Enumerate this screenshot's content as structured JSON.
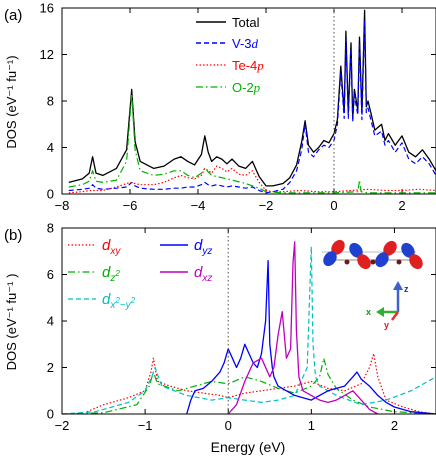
{
  "chart_data": [
    {
      "panel_label": "(a)",
      "type": "line",
      "ylabel": "DOS (eV⁻¹ fu⁻¹)",
      "xlim": [
        -8,
        3
      ],
      "ylim": [
        0,
        16
      ],
      "xticks": [
        -8,
        -6,
        -4,
        -2,
        0,
        2
      ],
      "yticks": [
        0,
        4,
        8,
        12,
        16
      ],
      "fermi_level": 0,
      "legend": "top-center",
      "series": [
        {
          "name": "Total",
          "color": "#000000",
          "style": "solid",
          "x": [
            -7.8,
            -7.4,
            -7.2,
            -7.1,
            -7.0,
            -6.8,
            -6.4,
            -6.1,
            -5.95,
            -5.85,
            -5.7,
            -5.3,
            -5.0,
            -4.7,
            -4.5,
            -4.3,
            -4.1,
            -3.9,
            -3.8,
            -3.7,
            -3.6,
            -3.45,
            -3.3,
            -3.15,
            -3.0,
            -2.8,
            -2.6,
            -2.4,
            -2.2,
            -2.0,
            -1.8,
            -1.5,
            -1.3,
            -1.1,
            -0.95,
            -0.85,
            -0.75,
            -0.6,
            -0.45,
            -0.3,
            -0.15,
            0.0,
            0.1,
            0.2,
            0.3,
            0.35,
            0.42,
            0.5,
            0.55,
            0.6,
            0.7,
            0.75,
            0.82,
            0.9,
            0.95,
            1.0,
            1.1,
            1.2,
            1.4,
            1.5,
            1.6,
            1.8,
            2.0,
            2.2,
            2.4,
            2.6,
            2.8,
            3.0
          ],
          "values": [
            1.0,
            1.3,
            1.8,
            3.2,
            1.8,
            1.6,
            2.2,
            3.8,
            9.0,
            4.5,
            2.8,
            2.2,
            2.4,
            3.0,
            3.2,
            2.8,
            2.5,
            3.4,
            5.0,
            3.6,
            2.8,
            3.2,
            3.0,
            2.6,
            3.0,
            2.4,
            2.2,
            2.8,
            1.5,
            0.7,
            0.7,
            0.9,
            1.4,
            2.5,
            4.5,
            6.3,
            4.2,
            3.6,
            4.0,
            4.6,
            4.4,
            5.2,
            6.4,
            11.0,
            7.0,
            14.0,
            7.0,
            13.0,
            6.5,
            9.0,
            7.2,
            13.5,
            7.0,
            15.8,
            7.5,
            8.0,
            6.8,
            5.5,
            6.0,
            4.6,
            5.2,
            4.2,
            5.0,
            3.6,
            3.2,
            3.8,
            3.0,
            2.0
          ]
        },
        {
          "name": "V-3d",
          "color": "#0000ff",
          "style": "dashed",
          "x": [
            -7.8,
            -7.4,
            -7.2,
            -7.1,
            -7.0,
            -6.8,
            -6.4,
            -6.1,
            -5.95,
            -5.85,
            -5.7,
            -5.3,
            -5.0,
            -4.7,
            -4.5,
            -4.3,
            -4.1,
            -3.9,
            -3.8,
            -3.7,
            -3.6,
            -3.45,
            -3.3,
            -3.15,
            -3.0,
            -2.8,
            -2.6,
            -2.4,
            -2.2,
            -2.0,
            -1.8,
            -1.5,
            -1.3,
            -1.1,
            -0.95,
            -0.85,
            -0.75,
            -0.6,
            -0.45,
            -0.3,
            -0.15,
            0.0,
            0.1,
            0.2,
            0.3,
            0.35,
            0.42,
            0.5,
            0.55,
            0.6,
            0.7,
            0.75,
            0.82,
            0.9,
            0.95,
            1.0,
            1.1,
            1.2,
            1.4,
            1.5,
            1.6,
            1.8,
            2.0,
            2.2,
            2.4,
            2.6,
            2.8,
            3.0
          ],
          "values": [
            0.3,
            0.4,
            0.5,
            0.8,
            0.5,
            0.4,
            0.5,
            0.6,
            1.0,
            0.7,
            0.5,
            0.4,
            0.4,
            0.5,
            0.5,
            0.6,
            0.6,
            0.8,
            1.0,
            0.8,
            0.7,
            0.8,
            0.7,
            0.6,
            0.7,
            0.6,
            0.5,
            0.6,
            0.3,
            0.1,
            0.2,
            0.4,
            1.0,
            2.0,
            3.8,
            6.0,
            3.6,
            3.2,
            3.8,
            4.2,
            4.0,
            4.6,
            6.0,
            10.4,
            6.5,
            13.3,
            6.5,
            12.5,
            6.2,
            8.5,
            6.8,
            13.0,
            6.4,
            15.0,
            7.0,
            7.4,
            6.2,
            5.0,
            5.4,
            4.2,
            4.6,
            3.6,
            4.4,
            3.0,
            2.6,
            3.2,
            2.6,
            1.6
          ]
        },
        {
          "name": "Te-4p",
          "color": "#ff0000",
          "style": "dotted",
          "x": [
            -7.8,
            -7.4,
            -7.2,
            -7.0,
            -6.8,
            -6.4,
            -6.0,
            -5.7,
            -5.3,
            -5.0,
            -4.7,
            -4.5,
            -4.3,
            -4.1,
            -3.9,
            -3.8,
            -3.6,
            -3.45,
            -3.3,
            -3.15,
            -3.0,
            -2.8,
            -2.6,
            -2.4,
            -2.2,
            -2.0,
            -1.8,
            -1.5,
            -1.0,
            -0.5,
            0.0,
            0.5,
            1.0,
            1.5,
            2.0,
            2.5,
            3.0
          ],
          "values": [
            0.1,
            0.2,
            0.3,
            0.3,
            0.3,
            0.6,
            1.0,
            0.8,
            0.8,
            1.0,
            1.4,
            1.6,
            1.4,
            1.3,
            1.6,
            2.2,
            1.8,
            2.4,
            2.2,
            1.9,
            2.2,
            1.7,
            1.6,
            2.0,
            1.0,
            0.3,
            0.2,
            0.2,
            0.3,
            0.2,
            0.2,
            0.3,
            0.4,
            0.3,
            0.3,
            0.4,
            0.3
          ]
        },
        {
          "name": "O-2p",
          "color": "#00b000",
          "style": "dashdot",
          "x": [
            -7.8,
            -7.4,
            -7.2,
            -7.1,
            -7.0,
            -6.8,
            -6.4,
            -6.1,
            -5.95,
            -5.85,
            -5.7,
            -5.3,
            -5.0,
            -4.7,
            -4.5,
            -4.3,
            -4.1,
            -3.9,
            -3.8,
            -3.6,
            -3.3,
            -3.0,
            -2.6,
            -2.2,
            -2.0,
            -1.5,
            -1.0,
            0.0,
            0.7,
            0.75,
            0.8,
            1.0,
            1.5,
            2.0,
            3.0
          ],
          "values": [
            0.6,
            0.8,
            1.1,
            2.0,
            1.1,
            1.0,
            1.2,
            2.8,
            8.6,
            3.8,
            2.0,
            1.6,
            1.7,
            2.0,
            2.0,
            1.6,
            1.4,
            1.8,
            2.2,
            1.6,
            1.4,
            1.2,
            0.9,
            0.5,
            0.2,
            0.1,
            0.1,
            0.1,
            0.2,
            1.2,
            0.2,
            0.1,
            0.1,
            0.1,
            0.1
          ]
        }
      ]
    },
    {
      "panel_label": "(b)",
      "type": "line",
      "xlabel": "Energy (eV)",
      "ylabel": "DOS (eV⁻¹ fu⁻¹ )",
      "xlim": [
        -2,
        2.5
      ],
      "ylim": [
        0,
        8
      ],
      "xticks": [
        -2,
        -1,
        0,
        1,
        2
      ],
      "yticks": [
        0,
        2,
        4,
        6,
        8
      ],
      "fermi_level": 0,
      "legend": "top-left",
      "inset_axis_labels": [
        "z",
        "x",
        "y"
      ],
      "series": [
        {
          "name": "d_xy",
          "color": "#ff0000",
          "style": "dotted",
          "x": [
            -1.7,
            -1.5,
            -1.2,
            -1.0,
            -0.93,
            -0.9,
            -0.85,
            -0.7,
            -0.5,
            -0.3,
            -0.1,
            0.0,
            0.2,
            0.4,
            0.6,
            0.8,
            1.0,
            1.2,
            1.4,
            1.6,
            1.7,
            1.75,
            1.8,
            1.9,
            2.1,
            2.3,
            2.5
          ],
          "values": [
            0.1,
            0.4,
            0.7,
            1.0,
            1.8,
            2.4,
            1.4,
            1.2,
            1.0,
            0.9,
            0.8,
            0.7,
            0.9,
            1.0,
            1.1,
            1.2,
            1.4,
            1.1,
            1.0,
            1.3,
            2.0,
            2.6,
            1.6,
            0.6,
            0.3,
            0.1,
            0.0
          ]
        },
        {
          "name": "d_z2",
          "color": "#00b000",
          "style": "dashdot",
          "x": [
            -2.0,
            -1.5,
            -1.1,
            -0.95,
            -0.9,
            -0.85,
            -0.6,
            -0.4,
            -0.2,
            0.0,
            0.2,
            0.4,
            0.6,
            0.8,
            1.0,
            1.1,
            1.15,
            1.2,
            1.3,
            1.5,
            1.7,
            2.0,
            2.5
          ],
          "values": [
            0.0,
            0.05,
            0.4,
            1.2,
            1.8,
            1.3,
            1.0,
            1.2,
            1.4,
            1.3,
            1.6,
            1.4,
            1.1,
            0.9,
            1.2,
            1.6,
            2.4,
            1.7,
            1.1,
            0.6,
            0.3,
            0.1,
            0.0
          ]
        },
        {
          "name": "d_x2-y2",
          "color": "#00c0c0",
          "style": "dashed",
          "x": [
            -2.0,
            -1.6,
            -1.2,
            -1.0,
            -0.92,
            -0.88,
            -0.8,
            -0.5,
            -0.2,
            0.0,
            0.2,
            0.4,
            0.6,
            0.8,
            0.95,
            1.0,
            1.02,
            1.05,
            1.1,
            1.3,
            1.6,
            1.9,
            2.2,
            2.5
          ],
          "values": [
            0.0,
            0.1,
            0.5,
            1.0,
            1.6,
            2.0,
            1.2,
            0.8,
            0.6,
            0.7,
            0.6,
            0.5,
            0.6,
            0.8,
            2.0,
            7.2,
            3.0,
            1.6,
            1.2,
            0.8,
            0.4,
            0.6,
            1.0,
            1.6
          ]
        },
        {
          "name": "d_yz",
          "color": "#0000ff",
          "style": "solid",
          "x": [
            -0.5,
            -0.45,
            -0.4,
            -0.3,
            -0.2,
            -0.1,
            -0.05,
            0.0,
            0.05,
            0.1,
            0.15,
            0.2,
            0.25,
            0.3,
            0.35,
            0.4,
            0.45,
            0.48,
            0.5,
            0.53,
            0.55,
            0.6,
            0.7,
            0.8,
            0.9,
            1.0,
            1.1,
            1.2,
            1.3,
            1.4,
            1.5,
            1.55,
            1.6,
            1.7,
            1.8,
            1.9,
            2.0,
            2.2,
            2.5
          ],
          "values": [
            0.0,
            0.6,
            1.0,
            1.1,
            1.4,
            1.8,
            2.2,
            2.8,
            2.4,
            2.0,
            2.4,
            3.0,
            2.6,
            2.2,
            2.0,
            2.6,
            4.0,
            6.6,
            3.0,
            2.0,
            1.6,
            1.2,
            1.0,
            0.8,
            0.7,
            0.6,
            0.8,
            1.0,
            1.1,
            1.2,
            1.6,
            1.8,
            1.5,
            1.2,
            0.8,
            0.5,
            0.3,
            0.1,
            0.0
          ]
        },
        {
          "name": "d_xz",
          "color": "#c000c0",
          "style": "solid",
          "x": [
            0.0,
            0.1,
            0.2,
            0.3,
            0.4,
            0.5,
            0.55,
            0.6,
            0.65,
            0.7,
            0.75,
            0.78,
            0.8,
            0.82,
            0.85,
            0.9,
            1.0,
            1.1,
            1.2,
            1.3,
            1.4,
            1.5,
            1.6,
            1.7,
            1.8
          ],
          "values": [
            0.0,
            0.4,
            1.4,
            2.2,
            2.4,
            1.6,
            2.0,
            3.4,
            4.4,
            2.4,
            2.8,
            6.5,
            7.4,
            3.6,
            1.6,
            1.0,
            0.8,
            0.6,
            0.5,
            0.6,
            0.8,
            1.0,
            0.6,
            0.2,
            0.0
          ]
        }
      ]
    }
  ],
  "legend_labels": {
    "a": [
      "Total",
      "V-3d",
      "Te-4p",
      "O-2p"
    ],
    "b": [
      "d_xy",
      "d_yz",
      "d_z2",
      "d_xz",
      "d_x2-y2"
    ]
  }
}
